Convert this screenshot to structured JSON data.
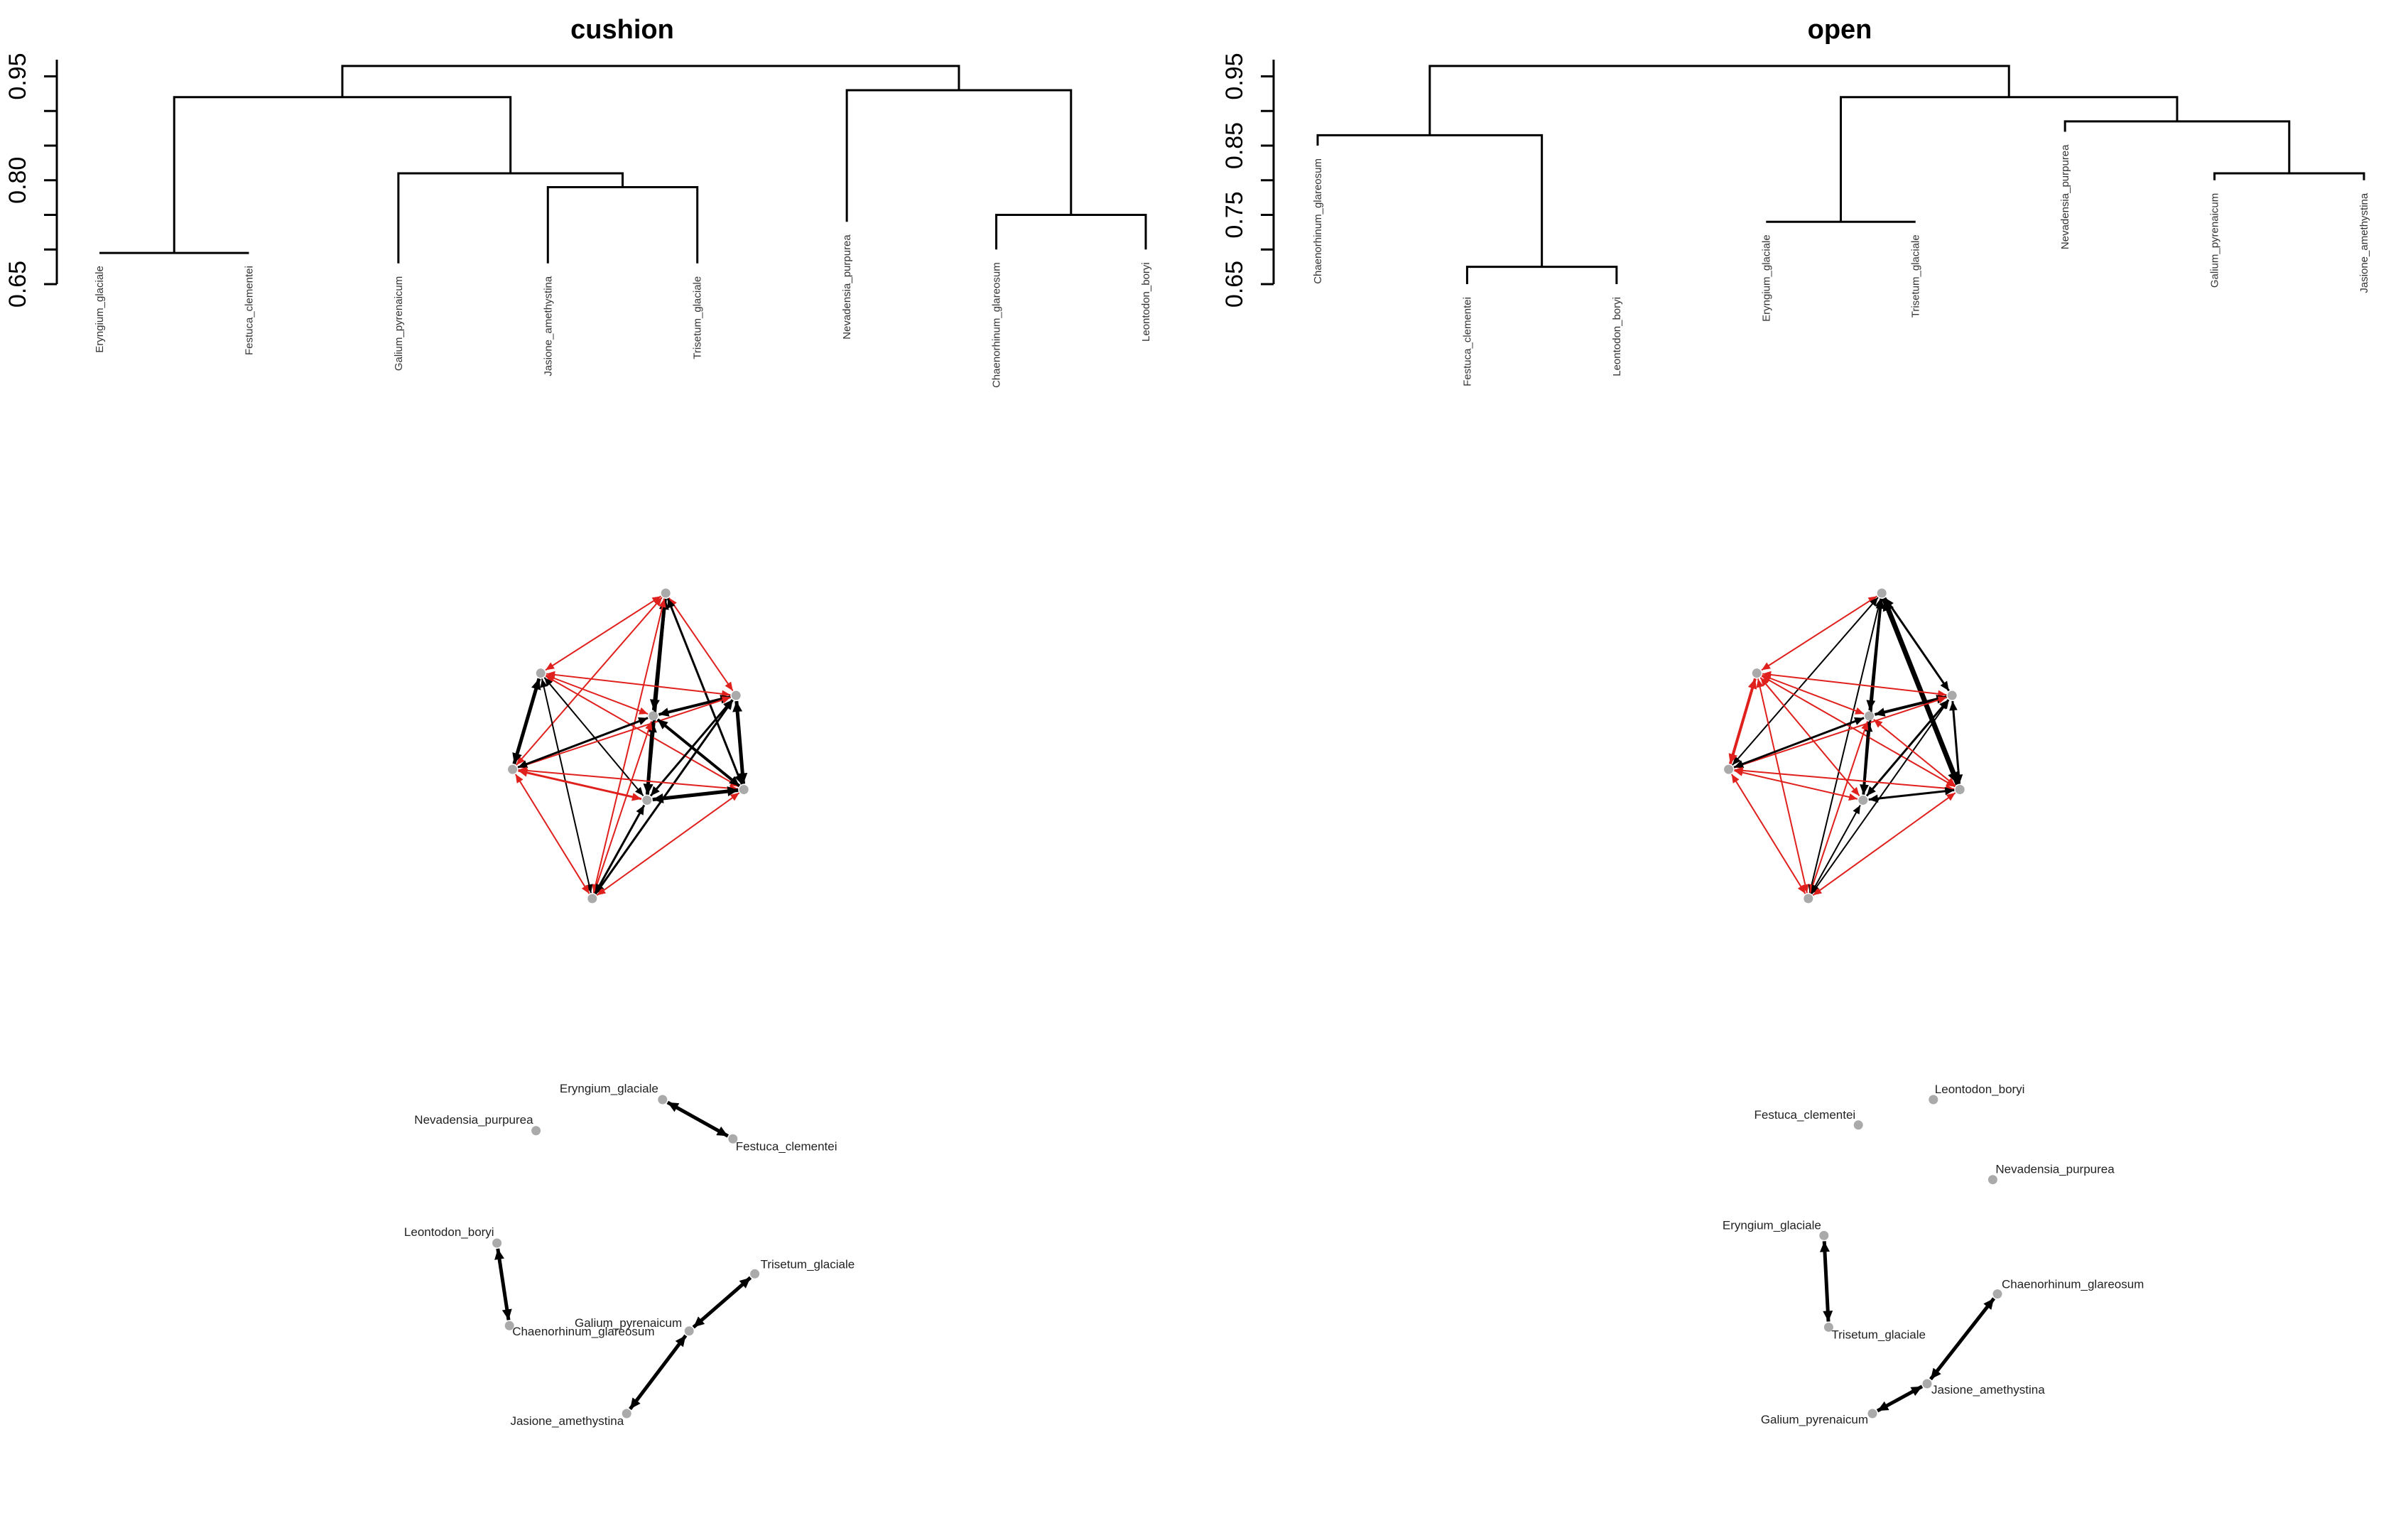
{
  "chart_data": [
    {
      "type": "dendrogram",
      "title": "cushion",
      "y_ticks": [
        "0.65",
        "0.80",
        "0.95"
      ],
      "ylim": [
        0.65,
        0.97
      ],
      "leaves": [
        "Eryngium_glaciale",
        "Festuca_clementei",
        "Galium_pyrenaicum",
        "Jasione_amethystina",
        "Trisetum_glaciale",
        "Nevadensia_purpurea",
        "Chaenorhinum_glareosum",
        "Leontodon_boryi"
      ],
      "leaf_tops": [
        0.695,
        0.695,
        0.68,
        0.68,
        0.68,
        0.74,
        0.7,
        0.7
      ],
      "merges": [
        [
          -1,
          -2,
          0.695
        ],
        [
          -4,
          -5,
          0.79
        ],
        [
          -3,
          2,
          0.81
        ],
        [
          1,
          3,
          0.92
        ],
        [
          -7,
          -8,
          0.75
        ],
        [
          -6,
          5,
          0.93
        ],
        [
          4,
          6,
          0.965
        ]
      ]
    },
    {
      "type": "dendrogram",
      "title": "open",
      "y_ticks": [
        "0.65",
        "0.75",
        "0.85",
        "0.95"
      ],
      "ylim": [
        0.65,
        0.97
      ],
      "leaves": [
        "Chaenorhinum_glareosum",
        "Festuca_clementei",
        "Leontodon_boryi",
        "Eryngium_glaciale",
        "Trisetum_glaciale",
        "Nevadensia_purpurea",
        "Galium_pyrenaicum",
        "Jasione_amethystina"
      ],
      "leaf_tops": [
        0.85,
        0.65,
        0.65,
        0.74,
        0.74,
        0.87,
        0.8,
        0.8
      ],
      "merges": [
        [
          -2,
          -3,
          0.675
        ],
        [
          -1,
          1,
          0.865
        ],
        [
          -4,
          -5,
          0.74
        ],
        [
          -7,
          -8,
          0.81
        ],
        [
          -6,
          4,
          0.885
        ],
        [
          3,
          5,
          0.92
        ],
        [
          2,
          6,
          0.965
        ]
      ]
    },
    {
      "type": "network",
      "name": "cushion-full-network",
      "nodes": [
        [
          0.426,
          0.0
        ],
        [
          0.346,
          0.262
        ],
        [
          0.471,
          0.335
        ],
        [
          0.418,
          0.402
        ],
        [
          0.328,
          0.577
        ],
        [
          0.476,
          0.643
        ],
        [
          0.414,
          0.678
        ],
        [
          0.379,
          1.0
        ]
      ],
      "edges": [
        [
          0,
          1,
          "red",
          2
        ],
        [
          0,
          2,
          "red",
          2
        ],
        [
          0,
          3,
          "black",
          5
        ],
        [
          0,
          4,
          "red",
          2
        ],
        [
          0,
          5,
          "black",
          3
        ],
        [
          0,
          6,
          "black",
          4
        ],
        [
          0,
          7,
          "red",
          2
        ],
        [
          1,
          2,
          "red",
          2
        ],
        [
          1,
          3,
          "red",
          2
        ],
        [
          1,
          4,
          "black",
          5
        ],
        [
          1,
          5,
          "red",
          2
        ],
        [
          1,
          6,
          "black",
          2
        ],
        [
          1,
          7,
          "black",
          2
        ],
        [
          2,
          3,
          "black",
          4
        ],
        [
          2,
          4,
          "red",
          2
        ],
        [
          2,
          5,
          "black",
          5
        ],
        [
          2,
          6,
          "black",
          3
        ],
        [
          2,
          7,
          "black",
          3
        ],
        [
          3,
          4,
          "black",
          3
        ],
        [
          3,
          5,
          "black",
          4
        ],
        [
          3,
          6,
          "black",
          5
        ],
        [
          3,
          7,
          "red",
          2
        ],
        [
          4,
          5,
          "red",
          2
        ],
        [
          4,
          6,
          "red",
          3
        ],
        [
          4,
          7,
          "red",
          2
        ],
        [
          5,
          6,
          "black",
          5
        ],
        [
          5,
          7,
          "red",
          2
        ],
        [
          6,
          7,
          "black",
          3
        ]
      ]
    },
    {
      "type": "network",
      "name": "open-full-network",
      "nodes": [
        [
          0.426,
          0.0
        ],
        [
          0.346,
          0.262
        ],
        [
          0.471,
          0.335
        ],
        [
          0.418,
          0.402
        ],
        [
          0.328,
          0.577
        ],
        [
          0.476,
          0.643
        ],
        [
          0.414,
          0.678
        ],
        [
          0.379,
          1.0
        ]
      ],
      "edges": [
        [
          0,
          1,
          "red",
          2
        ],
        [
          0,
          2,
          "black",
          3
        ],
        [
          0,
          3,
          "black",
          4
        ],
        [
          0,
          4,
          "black",
          2
        ],
        [
          0,
          5,
          "black",
          7
        ],
        [
          0,
          6,
          "black",
          3
        ],
        [
          0,
          7,
          "black",
          2
        ],
        [
          1,
          2,
          "red",
          2
        ],
        [
          1,
          3,
          "red",
          2
        ],
        [
          1,
          4,
          "red",
          4
        ],
        [
          1,
          5,
          "red",
          2
        ],
        [
          1,
          6,
          "red",
          2
        ],
        [
          1,
          7,
          "red",
          2
        ],
        [
          2,
          3,
          "black",
          4
        ],
        [
          2,
          4,
          "red",
          2
        ],
        [
          2,
          5,
          "black",
          3
        ],
        [
          2,
          6,
          "black",
          3
        ],
        [
          2,
          7,
          "black",
          2
        ],
        [
          3,
          4,
          "black",
          3
        ],
        [
          3,
          5,
          "red",
          2
        ],
        [
          3,
          6,
          "black",
          4
        ],
        [
          3,
          7,
          "red",
          2
        ],
        [
          4,
          5,
          "red",
          2
        ],
        [
          4,
          6,
          "red",
          2
        ],
        [
          4,
          7,
          "red",
          2
        ],
        [
          5,
          6,
          "black",
          3
        ],
        [
          5,
          7,
          "red",
          2
        ],
        [
          6,
          7,
          "black",
          2
        ]
      ]
    },
    {
      "type": "network",
      "name": "cushion-pair-network",
      "nodes": [
        {
          "label": "Eryngium_glaciale",
          "pos": [
            0.424,
            0.0
          ]
        },
        {
          "label": "Festuca_clementei",
          "pos": [
            0.469,
            0.125
          ]
        },
        {
          "label": "Nevadensia_purpurea",
          "pos": [
            0.343,
            0.099
          ]
        },
        {
          "label": "Leontodon_boryi",
          "pos": [
            0.318,
            0.457
          ]
        },
        {
          "label": "Chaenorhinum_glareosum",
          "pos": [
            0.326,
            0.72
          ]
        },
        {
          "label": "Galium_pyrenaicum",
          "pos": [
            0.441,
            0.737
          ]
        },
        {
          "label": "Trisetum_glaciale",
          "pos": [
            0.483,
            0.555
          ]
        },
        {
          "label": "Jasione_amethystina",
          "pos": [
            0.401,
            1.0
          ]
        }
      ],
      "edges": [
        [
          0,
          1,
          "black",
          5
        ],
        [
          3,
          4,
          "black",
          5
        ],
        [
          6,
          5,
          "black",
          5
        ],
        [
          5,
          7,
          "black",
          5
        ]
      ]
    },
    {
      "type": "network",
      "name": "open-pair-network",
      "nodes": [
        {
          "label": "Leontodon_boryi",
          "pos": [
            0.459,
            0.0
          ]
        },
        {
          "label": "Festuca_clementei",
          "pos": [
            0.411,
            0.081
          ]
        },
        {
          "label": "Nevadensia_purpurea",
          "pos": [
            0.497,
            0.255
          ]
        },
        {
          "label": "Eryngium_glaciale",
          "pos": [
            0.389,
            0.433
          ]
        },
        {
          "label": "Trisetum_glaciale",
          "pos": [
            0.392,
            0.725
          ]
        },
        {
          "label": "Chaenorhinum_glareosum",
          "pos": [
            0.5,
            0.619
          ]
        },
        {
          "label": "Jasione_amethystina",
          "pos": [
            0.455,
            0.905
          ]
        },
        {
          "label": "Galium_pyrenaicum",
          "pos": [
            0.42,
            1.0
          ]
        }
      ],
      "edges": [
        [
          3,
          4,
          "black",
          5
        ],
        [
          5,
          6,
          "black",
          5
        ],
        [
          6,
          7,
          "black",
          5
        ]
      ]
    }
  ]
}
